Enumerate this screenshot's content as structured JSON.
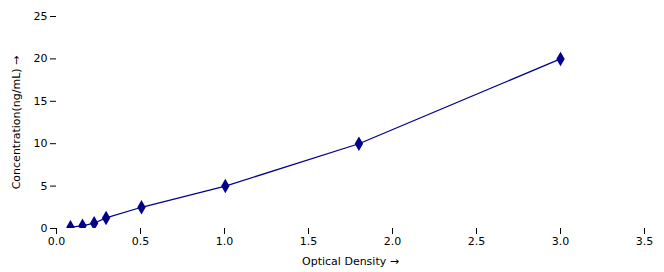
{
  "chart_data": {
    "type": "line",
    "x": [
      0.083,
      0.155,
      0.224,
      0.295,
      0.506,
      1.005,
      1.8,
      3.0
    ],
    "values": [
      0.156,
      0.312,
      0.625,
      1.25,
      2.5,
      5.0,
      10.0,
      20.0
    ],
    "color": "#00008B",
    "marker": "diamond",
    "line_style": "solid",
    "xlabel": "Optical Density",
    "ylabel": "Concentration(ng/mL)",
    "xlim": [
      0,
      3.5
    ],
    "ylim": [
      0,
      25
    ],
    "xticks": [
      {
        "value": 0,
        "label": "0.0"
      },
      0.5,
      {
        "value": 1,
        "label": "1.0"
      },
      1.5,
      {
        "value": 2,
        "label": "2.0"
      },
      2.5,
      {
        "value": 3,
        "label": "3.0"
      },
      3.5
    ],
    "yticks": [
      0,
      5,
      10,
      15,
      20,
      25
    ],
    "grid": false
  }
}
